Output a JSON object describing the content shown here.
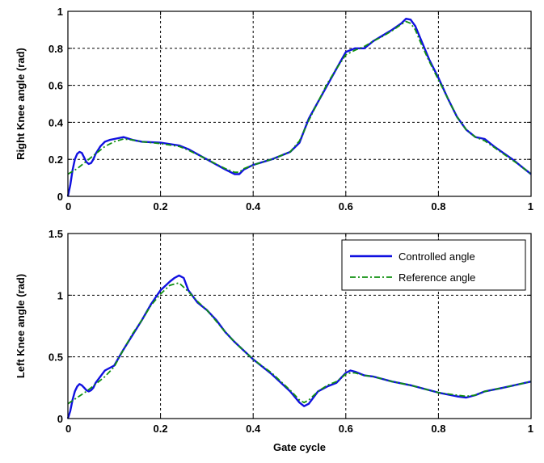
{
  "colors": {
    "controlled": "#1010e0",
    "reference": "#109010"
  },
  "chart_data": [
    {
      "type": "line",
      "xlabel": "",
      "ylabel": "Right Knee angle (rad)",
      "xlim": [
        0,
        1
      ],
      "ylim": [
        0,
        1
      ],
      "xticks": [
        0,
        0.2,
        0.4,
        0.6,
        0.8,
        1
      ],
      "yticks": [
        0,
        0.2,
        0.4,
        0.6,
        0.8,
        1
      ],
      "xtick_labels": [
        "0",
        "0.2",
        "0.4",
        "0.6",
        "0.8",
        "1"
      ],
      "ytick_labels": [
        "0",
        "0.2",
        "0.4",
        "0.6",
        "0.8",
        "1"
      ],
      "grid": true,
      "series": [
        {
          "key": "controlled",
          "x": [
            0,
            0.005,
            0.01,
            0.015,
            0.02,
            0.025,
            0.03,
            0.035,
            0.04,
            0.045,
            0.05,
            0.055,
            0.06,
            0.07,
            0.08,
            0.09,
            0.1,
            0.12,
            0.14,
            0.16,
            0.2,
            0.24,
            0.26,
            0.3,
            0.34,
            0.36,
            0.37,
            0.38,
            0.4,
            0.44,
            0.48,
            0.5,
            0.52,
            0.54,
            0.56,
            0.58,
            0.6,
            0.62,
            0.64,
            0.66,
            0.68,
            0.7,
            0.72,
            0.73,
            0.74,
            0.75,
            0.76,
            0.78,
            0.8,
            0.82,
            0.84,
            0.86,
            0.88,
            0.9,
            0.92,
            0.94,
            0.96,
            0.98,
            1.0
          ],
          "y": [
            0.0,
            0.06,
            0.14,
            0.2,
            0.23,
            0.24,
            0.235,
            0.21,
            0.185,
            0.175,
            0.18,
            0.2,
            0.23,
            0.27,
            0.295,
            0.305,
            0.31,
            0.32,
            0.305,
            0.295,
            0.29,
            0.275,
            0.255,
            0.2,
            0.145,
            0.12,
            0.12,
            0.145,
            0.17,
            0.2,
            0.24,
            0.29,
            0.42,
            0.51,
            0.6,
            0.69,
            0.78,
            0.8,
            0.8,
            0.84,
            0.87,
            0.9,
            0.935,
            0.96,
            0.955,
            0.92,
            0.86,
            0.74,
            0.64,
            0.53,
            0.43,
            0.36,
            0.32,
            0.31,
            0.27,
            0.235,
            0.2,
            0.16,
            0.12
          ]
        },
        {
          "key": "reference",
          "x": [
            0,
            0.02,
            0.04,
            0.06,
            0.08,
            0.1,
            0.12,
            0.14,
            0.16,
            0.2,
            0.24,
            0.26,
            0.3,
            0.34,
            0.36,
            0.37,
            0.38,
            0.4,
            0.44,
            0.48,
            0.5,
            0.52,
            0.54,
            0.56,
            0.58,
            0.6,
            0.62,
            0.64,
            0.66,
            0.68,
            0.7,
            0.72,
            0.73,
            0.74,
            0.75,
            0.76,
            0.78,
            0.8,
            0.82,
            0.84,
            0.86,
            0.88,
            0.9,
            0.92,
            0.94,
            0.96,
            0.98,
            1.0
          ],
          "y": [
            0.12,
            0.15,
            0.19,
            0.23,
            0.27,
            0.295,
            0.31,
            0.305,
            0.295,
            0.285,
            0.27,
            0.25,
            0.2,
            0.15,
            0.13,
            0.13,
            0.15,
            0.17,
            0.2,
            0.24,
            0.3,
            0.41,
            0.51,
            0.61,
            0.69,
            0.765,
            0.79,
            0.81,
            0.84,
            0.865,
            0.895,
            0.93,
            0.945,
            0.935,
            0.9,
            0.84,
            0.73,
            0.63,
            0.53,
            0.43,
            0.36,
            0.32,
            0.3,
            0.265,
            0.23,
            0.195,
            0.16,
            0.12
          ]
        }
      ]
    },
    {
      "type": "line",
      "xlabel": "Gate cycle",
      "ylabel": "Left Knee angle (rad)",
      "xlim": [
        0,
        1
      ],
      "ylim": [
        0,
        1.5
      ],
      "xticks": [
        0,
        0.2,
        0.4,
        0.6,
        0.8,
        1
      ],
      "yticks": [
        0,
        0.5,
        1,
        1.5
      ],
      "xtick_labels": [
        "0",
        "0.2",
        "0.4",
        "0.6",
        "0.8",
        "1"
      ],
      "ytick_labels": [
        "0",
        "0.5",
        "1",
        "1.5"
      ],
      "grid": true,
      "legend": {
        "placement": "top-right",
        "entries": [
          {
            "label": "Controlled angle",
            "key": "controlled"
          },
          {
            "label": "Reference angle",
            "key": "reference"
          }
        ]
      },
      "series": [
        {
          "key": "controlled",
          "x": [
            0,
            0.005,
            0.01,
            0.015,
            0.02,
            0.025,
            0.03,
            0.035,
            0.04,
            0.045,
            0.05,
            0.055,
            0.06,
            0.07,
            0.08,
            0.1,
            0.12,
            0.14,
            0.16,
            0.18,
            0.2,
            0.22,
            0.23,
            0.24,
            0.25,
            0.26,
            0.28,
            0.3,
            0.32,
            0.34,
            0.36,
            0.38,
            0.4,
            0.44,
            0.48,
            0.5,
            0.51,
            0.52,
            0.54,
            0.56,
            0.58,
            0.6,
            0.61,
            0.62,
            0.64,
            0.66,
            0.7,
            0.74,
            0.8,
            0.84,
            0.86,
            0.88,
            0.9,
            0.94,
            1.0
          ],
          "y": [
            0.0,
            0.06,
            0.15,
            0.22,
            0.26,
            0.28,
            0.27,
            0.25,
            0.23,
            0.22,
            0.23,
            0.25,
            0.29,
            0.34,
            0.39,
            0.43,
            0.56,
            0.68,
            0.8,
            0.93,
            1.04,
            1.11,
            1.14,
            1.16,
            1.14,
            1.04,
            0.94,
            0.88,
            0.8,
            0.7,
            0.62,
            0.55,
            0.48,
            0.36,
            0.22,
            0.13,
            0.1,
            0.12,
            0.22,
            0.26,
            0.29,
            0.37,
            0.39,
            0.38,
            0.35,
            0.34,
            0.3,
            0.27,
            0.21,
            0.18,
            0.17,
            0.19,
            0.22,
            0.25,
            0.3
          ]
        },
        {
          "key": "reference",
          "x": [
            0,
            0.02,
            0.04,
            0.06,
            0.08,
            0.1,
            0.12,
            0.14,
            0.16,
            0.18,
            0.2,
            0.22,
            0.24,
            0.26,
            0.28,
            0.3,
            0.32,
            0.34,
            0.36,
            0.38,
            0.4,
            0.44,
            0.48,
            0.5,
            0.51,
            0.52,
            0.54,
            0.56,
            0.58,
            0.6,
            0.61,
            0.62,
            0.64,
            0.66,
            0.7,
            0.74,
            0.8,
            0.84,
            0.86,
            0.88,
            0.9,
            0.94,
            1.0
          ],
          "y": [
            0.12,
            0.17,
            0.22,
            0.28,
            0.34,
            0.42,
            0.56,
            0.69,
            0.8,
            0.92,
            1.01,
            1.08,
            1.1,
            1.03,
            0.95,
            0.88,
            0.79,
            0.7,
            0.62,
            0.55,
            0.48,
            0.37,
            0.23,
            0.15,
            0.13,
            0.15,
            0.22,
            0.27,
            0.3,
            0.36,
            0.37,
            0.37,
            0.35,
            0.34,
            0.3,
            0.27,
            0.21,
            0.19,
            0.18,
            0.19,
            0.22,
            0.25,
            0.3
          ]
        }
      ]
    }
  ]
}
